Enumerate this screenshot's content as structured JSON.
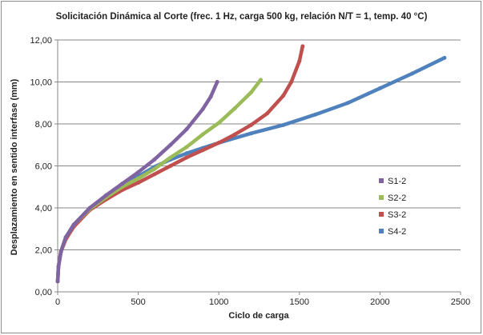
{
  "chart_data": {
    "type": "scatter",
    "title": "Solicitación Dinámica al Corte (frec. 1 Hz, carga 500 kg, relación N/T = 1, temp.  40 °C)",
    "xlabel": "Ciclo de carga",
    "ylabel": "Desplazamiento en sentido interfase (mm)",
    "xlim": [
      0,
      2500
    ],
    "ylim": [
      0,
      12
    ],
    "xticks": [
      0,
      500,
      1000,
      1500,
      2000,
      2500
    ],
    "xtick_labels": [
      "0",
      "500",
      "1000",
      "1500",
      "2000",
      "2500"
    ],
    "yticks": [
      0,
      2,
      4,
      6,
      8,
      10,
      12
    ],
    "ytick_labels": [
      "0,00",
      "2,00",
      "4,00",
      "6,00",
      "8,00",
      "10,00",
      "12,00"
    ],
    "grid": "horizontal",
    "legend_position": "right",
    "series": [
      {
        "name": "S1-2",
        "color": "#8064a2",
        "x": [
          0,
          5,
          20,
          50,
          100,
          200,
          300,
          400,
          500,
          600,
          700,
          800,
          900,
          950,
          990
        ],
        "y": [
          0.5,
          1.2,
          1.9,
          2.6,
          3.2,
          4.0,
          4.6,
          5.15,
          5.7,
          6.3,
          7.0,
          7.75,
          8.7,
          9.3,
          10.0
        ]
      },
      {
        "name": "S2-2",
        "color": "#9bbb59",
        "x": [
          0,
          5,
          20,
          50,
          100,
          200,
          300,
          400,
          500,
          600,
          700,
          800,
          900,
          1000,
          1100,
          1200,
          1260
        ],
        "y": [
          0.5,
          1.2,
          1.9,
          2.6,
          3.2,
          3.95,
          4.5,
          5.0,
          5.4,
          5.85,
          6.4,
          6.9,
          7.5,
          8.05,
          8.75,
          9.5,
          10.1
        ]
      },
      {
        "name": "S3-2",
        "color": "#c0504d",
        "x": [
          0,
          5,
          20,
          50,
          100,
          200,
          300,
          400,
          500,
          600,
          700,
          800,
          900,
          1000,
          1100,
          1200,
          1300,
          1400,
          1450,
          1500,
          1520
        ],
        "y": [
          0.5,
          1.2,
          1.9,
          2.5,
          3.1,
          3.9,
          4.4,
          4.85,
          5.2,
          5.6,
          6.0,
          6.4,
          6.75,
          7.1,
          7.5,
          7.95,
          8.5,
          9.35,
          10.0,
          11.0,
          11.7
        ]
      },
      {
        "name": "S4-2",
        "color": "#4f81bd",
        "x": [
          0,
          5,
          20,
          50,
          100,
          200,
          300,
          400,
          500,
          600,
          700,
          800,
          900,
          1000,
          1200,
          1400,
          1600,
          1800,
          2000,
          2200,
          2400
        ],
        "y": [
          0.5,
          1.2,
          1.9,
          2.6,
          3.2,
          4.0,
          4.5,
          5.0,
          5.5,
          5.95,
          6.3,
          6.6,
          6.85,
          7.1,
          7.55,
          7.95,
          8.45,
          9.0,
          9.7,
          10.4,
          11.15
        ]
      }
    ]
  }
}
